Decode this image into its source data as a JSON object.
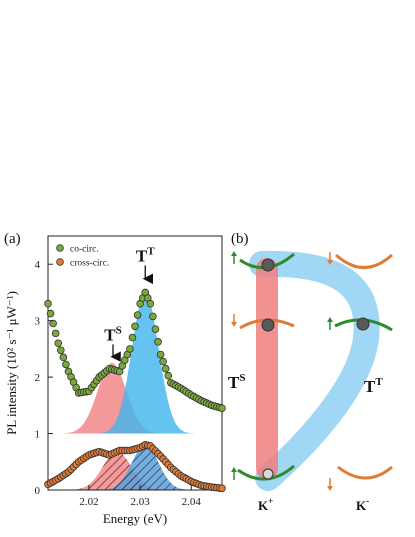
{
  "panel_a": {
    "label": "(a)"
  },
  "panel_b": {
    "label": "(b)"
  },
  "chart_data": {
    "type": "scatter",
    "xlabel": "Energy (eV)",
    "ylabel": "PL intensity (10² s⁻¹ μW⁻¹)",
    "xlim": [
      2.012,
      2.046
    ],
    "ylim": [
      0,
      4.5
    ],
    "x_ticks": [
      "2.02",
      "2.03",
      "2.04"
    ],
    "y_ticks": [
      "0",
      "1",
      "2",
      "3",
      "4"
    ],
    "legend": {
      "placement": "top-left",
      "entries": [
        "co-circ.",
        "cross-circ."
      ]
    },
    "colors": {
      "co": "#7aa83a",
      "cross": "#e07b35",
      "red_peak": "#f08080",
      "blue_peak": "#3fb4ee",
      "cross_blue": "#6aa6d8"
    },
    "series": [
      {
        "name": "co-circ.",
        "offset": 1,
        "x": [
          2.012,
          2.014,
          2.016,
          2.018,
          2.02,
          2.022,
          2.024,
          2.026,
          2.028,
          2.03,
          2.031,
          2.032,
          2.034,
          2.036,
          2.038,
          2.04,
          2.042,
          2.044,
          2.046
        ],
        "y": [
          3.3,
          2.6,
          2.1,
          1.72,
          1.75,
          2.0,
          2.15,
          2.1,
          2.5,
          3.3,
          3.5,
          3.3,
          2.4,
          1.9,
          1.8,
          1.68,
          1.58,
          1.5,
          1.45
        ]
      },
      {
        "name": "cross-circ.",
        "x": [
          2.012,
          2.014,
          2.016,
          2.018,
          2.02,
          2.022,
          2.024,
          2.026,
          2.028,
          2.03,
          2.031,
          2.032,
          2.034,
          2.036,
          2.038,
          2.04,
          2.042,
          2.044,
          2.046
        ],
        "y": [
          0.1,
          0.2,
          0.32,
          0.5,
          0.62,
          0.68,
          0.62,
          0.7,
          0.7,
          0.75,
          0.8,
          0.78,
          0.6,
          0.4,
          0.25,
          0.15,
          0.08,
          0.05,
          0.03
        ]
      }
    ],
    "peaks": [
      {
        "label": "T",
        "sup": "S",
        "center": 2.0245,
        "amplitude": 1.25,
        "sigma": 0.0028
      },
      {
        "label": "T",
        "sup": "T",
        "center": 2.031,
        "amplitude": 2.5,
        "sigma": 0.0026
      }
    ]
  },
  "diagram": {
    "label_left": "T",
    "label_left_sup": "S",
    "label_right": "T",
    "label_right_sup": "T",
    "k_plus": "K",
    "k_plus_sup": "+",
    "k_minus": "K",
    "k_minus_sup": "-"
  }
}
